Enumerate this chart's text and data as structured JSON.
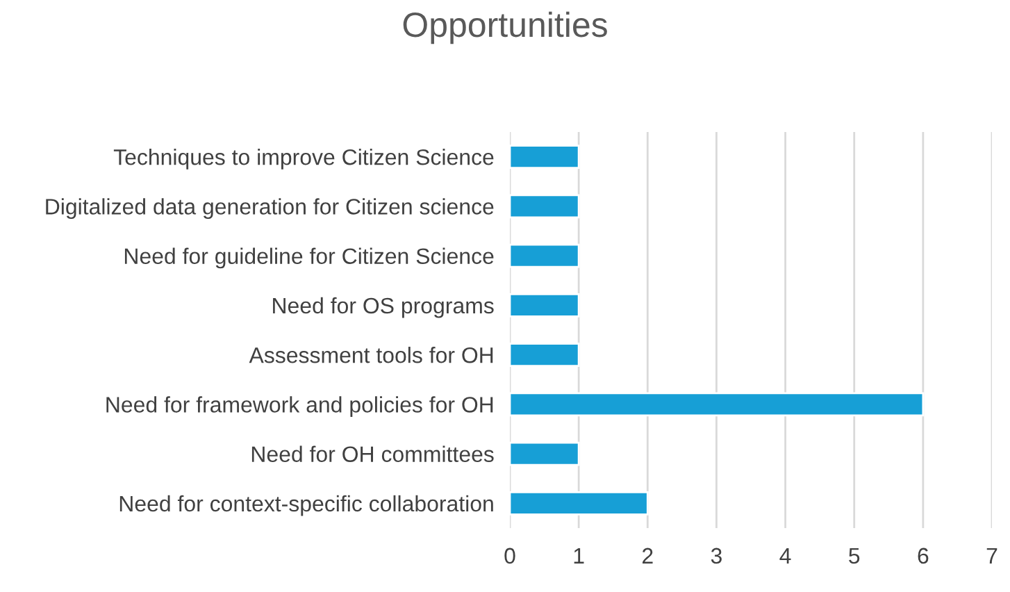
{
  "chart_data": {
    "type": "bar",
    "orientation": "horizontal",
    "title": "Opportunities",
    "categories": [
      "Techniques to improve Citizen Science",
      "Digitalized data generation for Citizen science",
      "Need for guideline for Citizen Science",
      "Need for OS programs",
      "Assessment tools for OH",
      "Need for framework and policies for OH",
      "Need for OH committees",
      "Need for context-specific collaboration"
    ],
    "values": [
      1,
      1,
      1,
      1,
      1,
      6,
      1,
      2
    ],
    "color": "#179fd6",
    "xlim": [
      0,
      7
    ],
    "xticks": [
      0,
      1,
      2,
      3,
      4,
      5,
      6,
      7
    ],
    "grid": "x",
    "legend": false
  }
}
